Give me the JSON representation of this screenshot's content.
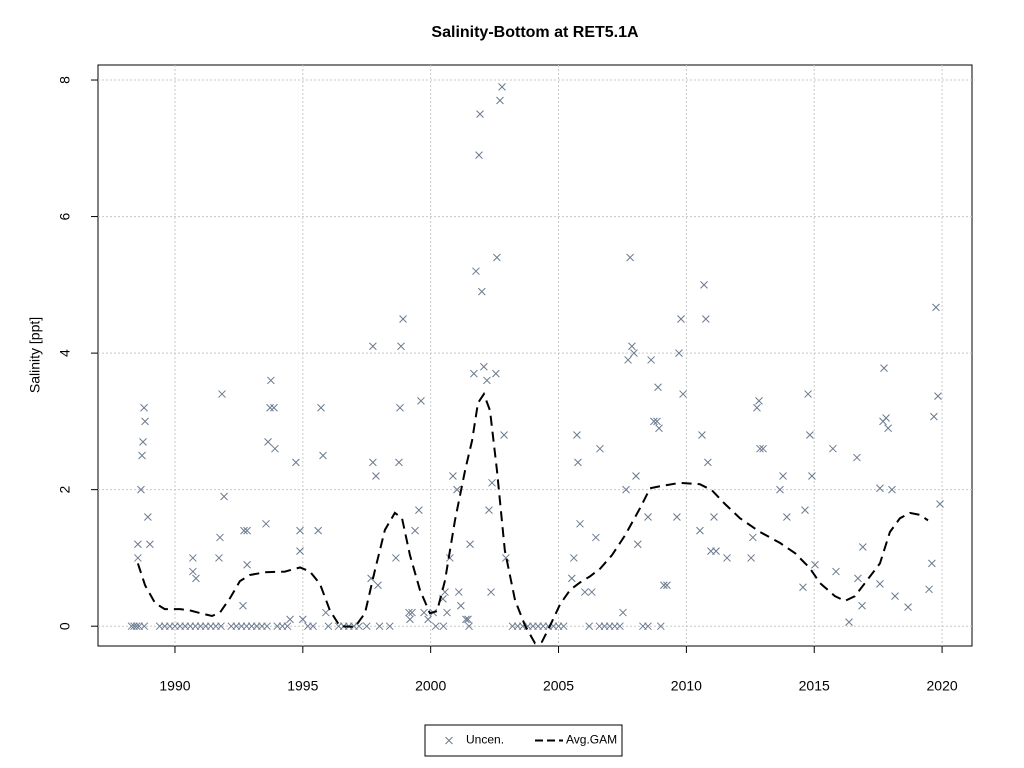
{
  "chart_data": {
    "type": "scatter",
    "title": "Salinity-Bottom at RET5.1A",
    "y_label": "Salinity [ppt]",
    "xlim": [
      1986.99,
      2021.17
    ],
    "ylim": [
      -0.29,
      8.22
    ],
    "xticks": [
      1990,
      1995,
      2000,
      2005,
      2010,
      2015,
      2020
    ],
    "yticks": [
      0,
      2,
      4,
      6,
      8
    ],
    "grid": true,
    "legend": "bottom",
    "series": [
      {
        "name": "Uncen.",
        "type": "scatter",
        "color": "#6b7a8f",
        "x": [
          1988.3,
          1988.4,
          1988.5,
          1988.6,
          1988.8,
          1989.4,
          1989.6,
          1989.8,
          1990.0,
          1990.2,
          1990.4,
          1990.6,
          1990.8,
          1991.0,
          1991.2,
          1991.4,
          1991.6,
          1991.8,
          1992.2,
          1992.4,
          1992.6,
          1992.8,
          1993.0,
          1993.2,
          1993.4,
          1993.6,
          1994.0,
          1994.2,
          1994.4,
          1995.2,
          1995.4,
          1996.0,
          1996.4,
          1996.6,
          1996.8,
          1997.0,
          1997.2,
          1997.5,
          1998.0,
          1998.4,
          2000.2,
          2000.5,
          2001.5,
          2003.2,
          2003.4,
          2003.6,
          2003.8,
          2004.0,
          2004.2,
          2004.4,
          2004.6,
          2004.8,
          2005.0,
          2005.2,
          2006.2,
          2006.6,
          2006.8,
          2007.0,
          2007.2,
          2007.4,
          2008.3,
          2008.5,
          2009.0,
          1988.55,
          1988.55,
          1988.67,
          1988.71,
          1988.75,
          1988.79,
          1988.83,
          1988.94,
          1989.02,
          1990.7,
          1990.7,
          1990.82,
          1991.72,
          1991.76,
          1991.84,
          1991.92,
          1992.7,
          1992.82,
          1992.82,
          1992.66,
          1993.56,
          1993.64,
          1993.72,
          1993.75,
          1993.87,
          1993.91,
          1994.5,
          1994.73,
          1994.89,
          1994.89,
          1995.0,
          1995.6,
          1995.71,
          1995.79,
          1995.9,
          1997.67,
          1997.74,
          1997.74,
          1997.86,
          1997.94,
          1998.64,
          1998.76,
          1998.8,
          1998.84,
          1998.92,
          1999.15,
          1999.19,
          1999.27,
          1999.39,
          1999.54,
          1999.62,
          1999.74,
          1999.9,
          2000.1,
          2000.48,
          2000.56,
          2000.64,
          2000.75,
          2000.87,
          2001.03,
          2001.1,
          2001.18,
          2001.38,
          2001.46,
          2001.54,
          2001.69,
          2001.77,
          2001.89,
          2001.93,
          2002.0,
          2002.08,
          2002.2,
          2002.28,
          2002.36,
          2002.4,
          2002.55,
          2002.59,
          2002.71,
          2002.79,
          2002.87,
          2002.94,
          2005.52,
          2005.6,
          2005.72,
          2005.76,
          2005.84,
          2006.03,
          2006.3,
          2006.46,
          2006.62,
          2007.52,
          2007.64,
          2007.72,
          2007.8,
          2007.87,
          2007.95,
          2008.03,
          2008.1,
          2008.5,
          2008.62,
          2008.73,
          2008.85,
          2008.89,
          2008.93,
          2009.12,
          2009.24,
          2009.63,
          2009.71,
          2009.79,
          2009.87,
          2010.53,
          2010.61,
          2010.69,
          2010.76,
          2010.84,
          2010.96,
          2011.08,
          2011.16,
          2011.59,
          2012.53,
          2012.6,
          2012.76,
          2012.84,
          2012.88,
          2013.0,
          2013.66,
          2013.78,
          2013.93,
          2014.56,
          2014.64,
          2014.76,
          2014.83,
          2014.91,
          2015.03,
          2015.73,
          2015.85,
          2016.36,
          2016.67,
          2016.71,
          2016.87,
          2016.9,
          2017.57,
          2017.57,
          2017.69,
          2017.73,
          2017.81,
          2017.89,
          2018.04,
          2018.16,
          2018.67,
          2019.49,
          2019.6,
          2019.68,
          2019.76,
          2019.84,
          2019.92
        ],
        "values": [
          0,
          0,
          0,
          0,
          0,
          0,
          0,
          0,
          0,
          0,
          0,
          0,
          0,
          0,
          0,
          0,
          0,
          0,
          0,
          0,
          0,
          0,
          0,
          0,
          0,
          0,
          0,
          0,
          0,
          0,
          0,
          0,
          0,
          0,
          0,
          0,
          0,
          0,
          0,
          0,
          0,
          0,
          0,
          0,
          0,
          0,
          0,
          0,
          0,
          0,
          0,
          0,
          0,
          0,
          0,
          0,
          0,
          0,
          0,
          0,
          0,
          0,
          0,
          1.0,
          1.2,
          2.0,
          2.5,
          2.7,
          3.2,
          3.0,
          1.6,
          1.2,
          1.0,
          0.8,
          0.7,
          1.0,
          1.3,
          3.4,
          1.9,
          1.4,
          1.4,
          0.9,
          0.3,
          1.5,
          2.7,
          3.2,
          3.6,
          3.2,
          2.6,
          0.1,
          2.4,
          1.1,
          1.4,
          0.1,
          1.4,
          3.2,
          2.5,
          0.2,
          0.7,
          4.1,
          2.4,
          2.2,
          0.6,
          1.0,
          2.4,
          3.2,
          4.1,
          4.5,
          0.2,
          0.1,
          0.2,
          1.4,
          1.7,
          3.3,
          0.2,
          0.1,
          0.2,
          0.4,
          0.5,
          0.2,
          1.0,
          2.2,
          2.0,
          0.5,
          0.3,
          0.1,
          0.1,
          1.2,
          3.7,
          5.2,
          6.9,
          7.5,
          4.9,
          3.8,
          3.6,
          1.7,
          0.5,
          2.1,
          3.7,
          5.4,
          7.7,
          7.9,
          2.8,
          1.0,
          0.7,
          1.0,
          2.8,
          2.4,
          1.5,
          0.5,
          0.5,
          1.3,
          2.6,
          0.2,
          2.0,
          3.9,
          5.4,
          4.1,
          4.0,
          2.2,
          1.2,
          1.6,
          3.9,
          3.0,
          3.0,
          3.5,
          2.9,
          0.6,
          0.6,
          1.6,
          4.0,
          4.5,
          3.4,
          1.4,
          2.8,
          5.0,
          4.5,
          2.4,
          1.1,
          1.6,
          1.1,
          1.0,
          1.0,
          1.3,
          3.2,
          3.3,
          2.6,
          2.6,
          2.0,
          2.2,
          1.6,
          0.57,
          1.7,
          3.4,
          2.8,
          2.2,
          0.9,
          2.6,
          0.8,
          0.06,
          2.47,
          0.7,
          0.3,
          1.16,
          0.62,
          2.02,
          3.0,
          3.78,
          3.05,
          2.9,
          2.0,
          0.44,
          0.28,
          0.54,
          0.92,
          3.07,
          4.67,
          3.37,
          1.79
        ]
      },
      {
        "name": "Avg.GAM",
        "type": "line",
        "color": "#000000",
        "x": [
          1988.55,
          1988.83,
          1989.22,
          1989.6,
          1990.2,
          1990.6,
          1991.0,
          1991.45,
          1991.76,
          1992.15,
          1992.54,
          1992.93,
          1993.52,
          1994.3,
          1994.89,
          1995.28,
          1995.67,
          1996.06,
          1996.45,
          1997.04,
          1997.43,
          1997.82,
          1998.21,
          1998.6,
          1998.88,
          1999.19,
          1999.58,
          1999.97,
          2000.25,
          2000.56,
          2000.95,
          2001.35,
          2001.62,
          2001.85,
          2002.08,
          2002.32,
          2002.59,
          2002.9,
          2003.3,
          2003.69,
          2004.08,
          2004.35,
          2004.66,
          2005.06,
          2005.45,
          2005.84,
          2006.23,
          2006.62,
          2007.09,
          2007.6,
          2008.19,
          2008.58,
          2008.97,
          2009.75,
          2010.53,
          2011.0,
          2011.51,
          2012.1,
          2012.88,
          2013.66,
          2014.25,
          2014.83,
          2015.23,
          2015.81,
          2016.2,
          2016.59,
          2016.98,
          2017.57,
          2017.96,
          2018.35,
          2018.74,
          2019.14,
          2019.45
        ],
        "values": [
          0.92,
          0.6,
          0.34,
          0.25,
          0.25,
          0.23,
          0.19,
          0.15,
          0.2,
          0.41,
          0.66,
          0.75,
          0.79,
          0.8,
          0.86,
          0.8,
          0.62,
          0.23,
          0.0,
          -0.01,
          0.19,
          0.82,
          1.41,
          1.66,
          1.58,
          1.04,
          0.53,
          0.19,
          0.22,
          0.67,
          1.55,
          2.29,
          2.72,
          3.27,
          3.4,
          3.16,
          2.29,
          1.11,
          0.38,
          0.01,
          -0.25,
          -0.23,
          0.0,
          0.32,
          0.53,
          0.64,
          0.73,
          0.84,
          1.04,
          1.33,
          1.73,
          2.02,
          2.05,
          2.1,
          2.08,
          1.99,
          1.79,
          1.58,
          1.38,
          1.22,
          1.07,
          0.85,
          0.63,
          0.44,
          0.37,
          0.44,
          0.63,
          0.92,
          1.38,
          1.58,
          1.66,
          1.63,
          1.55
        ]
      }
    ]
  }
}
